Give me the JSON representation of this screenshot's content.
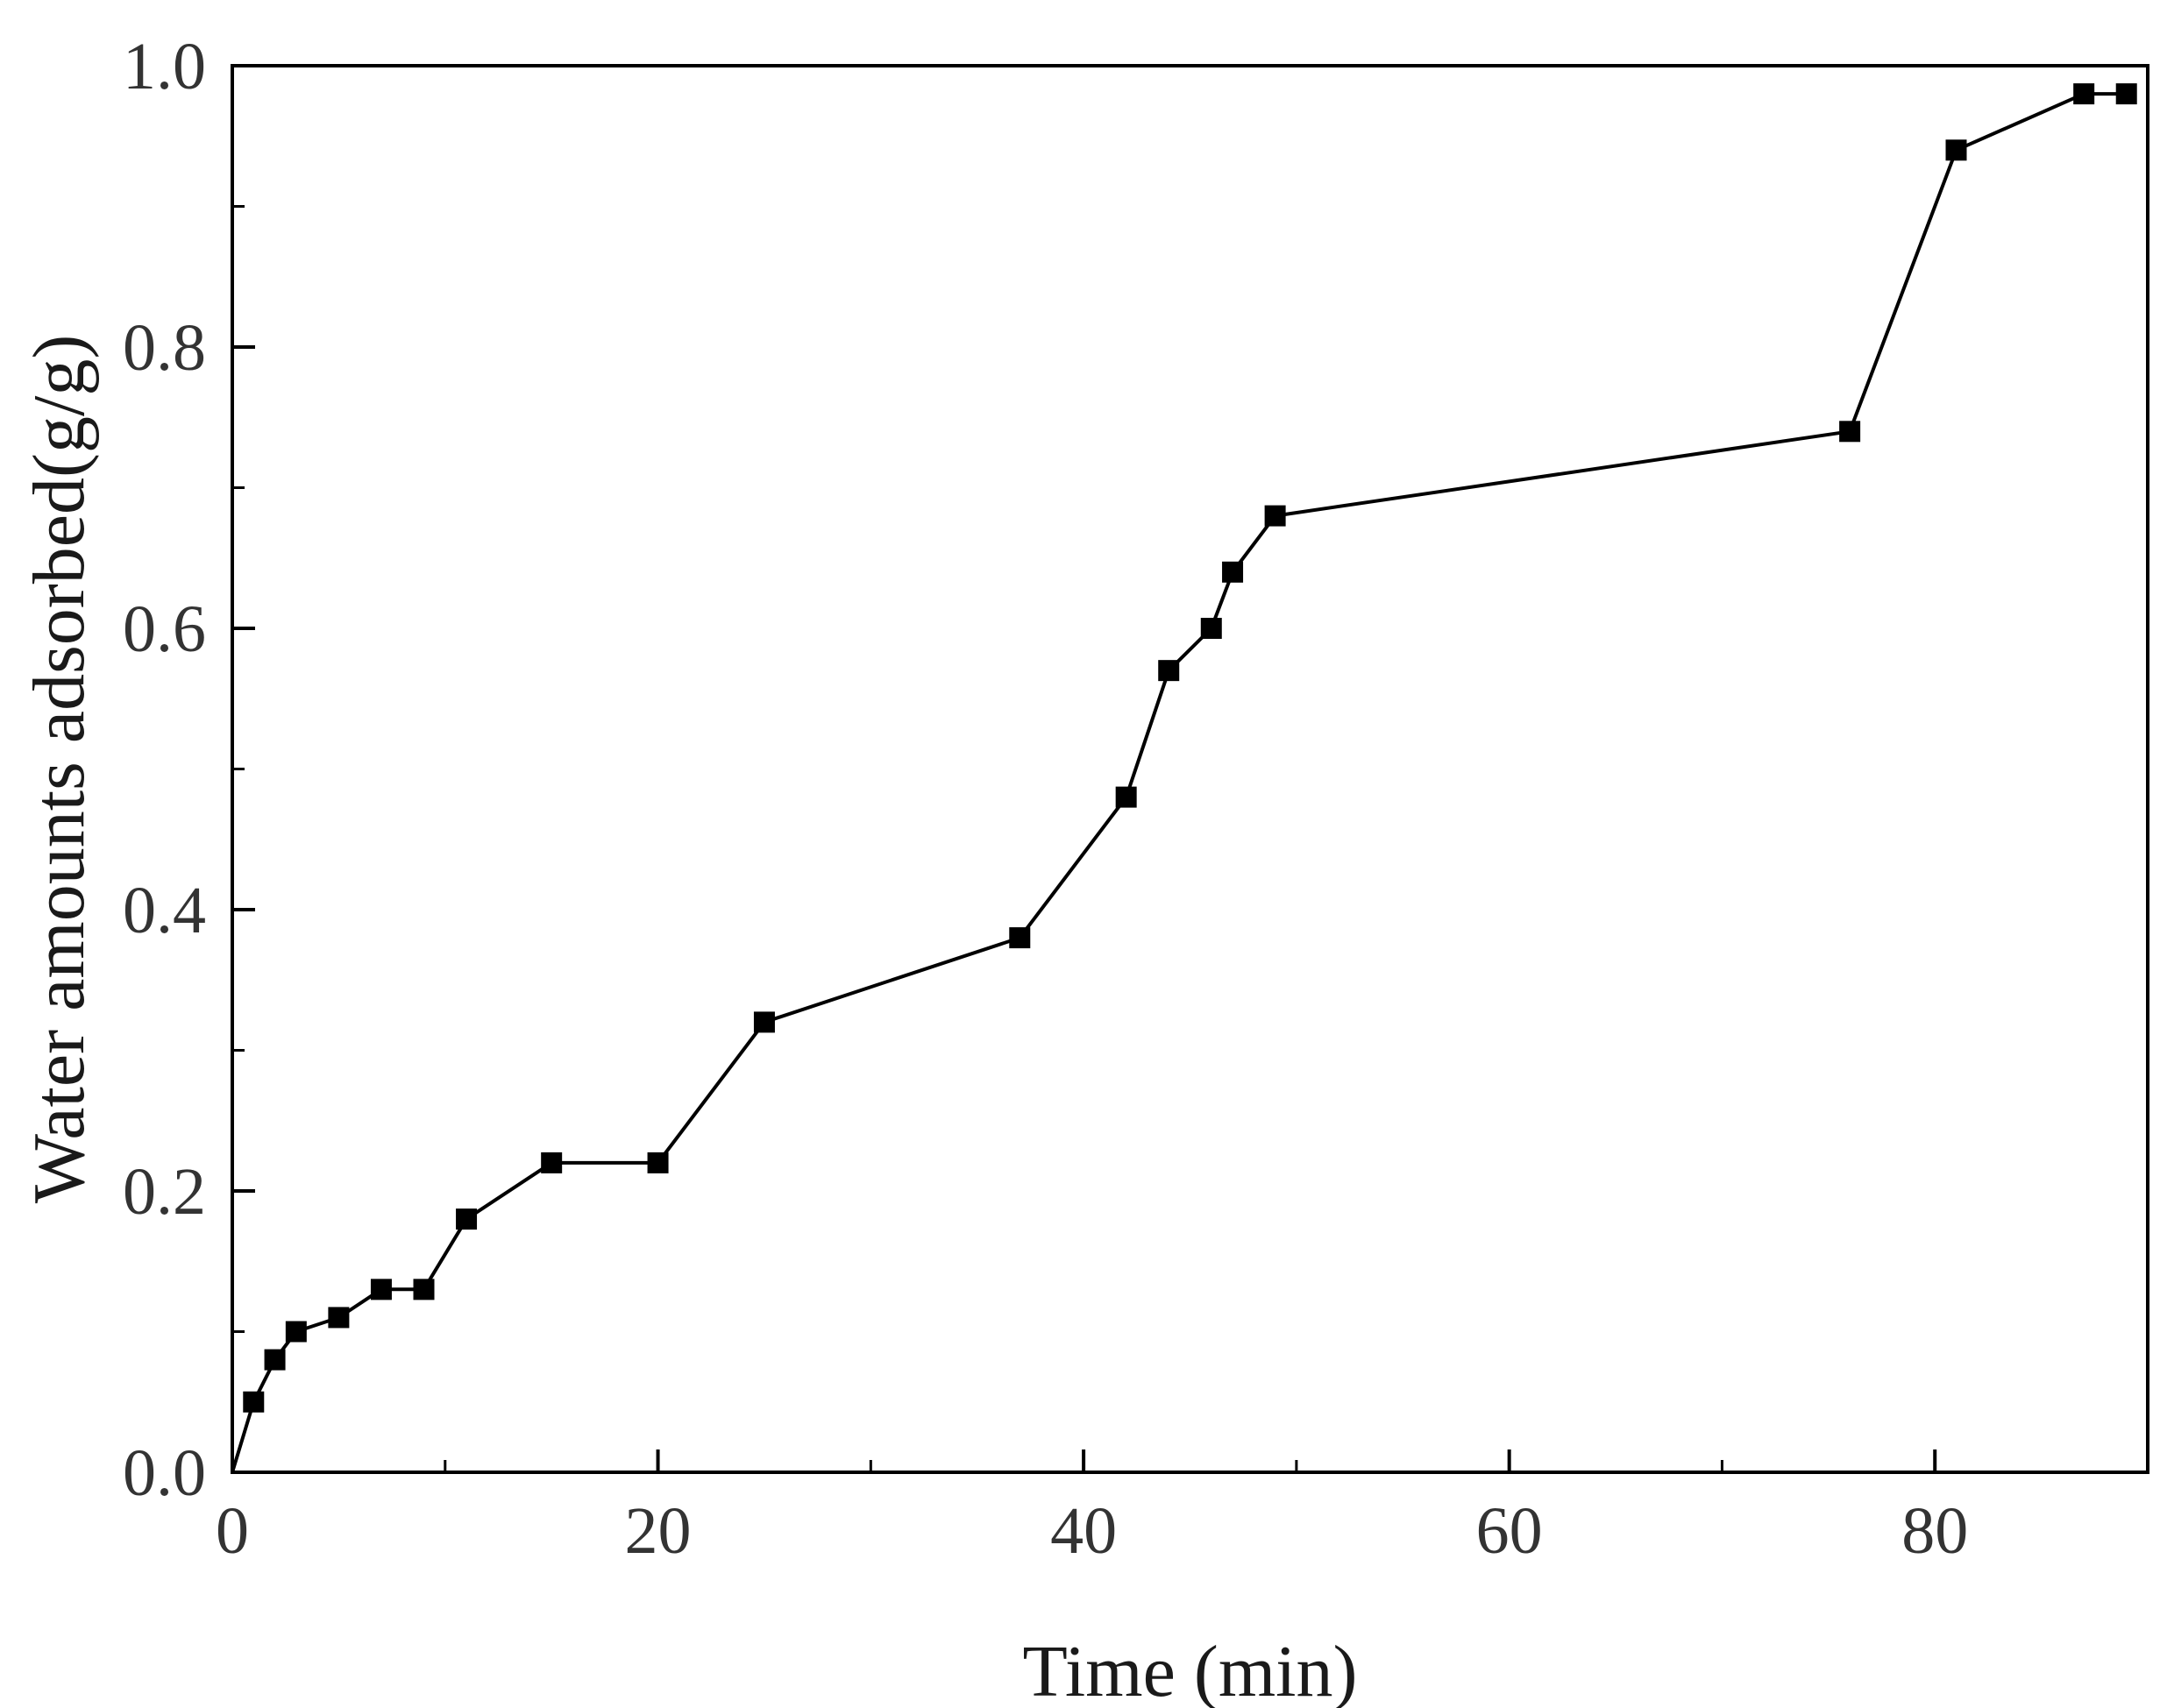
{
  "chart_data": {
    "type": "line",
    "title": "",
    "xlabel": "Time (min)",
    "ylabel": "Water amounts adsorbed(g/g)",
    "xlim": [
      0,
      90
    ],
    "ylim": [
      0,
      1.0
    ],
    "xticks": [
      0,
      20,
      40,
      60,
      80
    ],
    "xtick_labels": [
      "0",
      "20",
      "40",
      "60",
      "80"
    ],
    "x_minor_step": 10,
    "yticks": [
      0,
      0.2,
      0.4,
      0.6,
      0.8,
      1.0
    ],
    "ytick_labels": [
      "0.0",
      "0.2",
      "0.4",
      "0.6",
      "0.8",
      "1.0"
    ],
    "y_minor_step": 0.1,
    "grid": false,
    "series": [
      {
        "marker": "square",
        "color": "#000000",
        "x": [
          0,
          1,
          2,
          3,
          5,
          7,
          9,
          11,
          15,
          20,
          25,
          37,
          42,
          44,
          46,
          47,
          49,
          76,
          81,
          87,
          89
        ],
        "y": [
          0.0,
          0.05,
          0.08,
          0.1,
          0.11,
          0.13,
          0.13,
          0.18,
          0.22,
          0.22,
          0.32,
          0.38,
          0.48,
          0.57,
          0.6,
          0.64,
          0.68,
          0.74,
          0.94,
          0.98,
          0.98
        ]
      }
    ]
  }
}
